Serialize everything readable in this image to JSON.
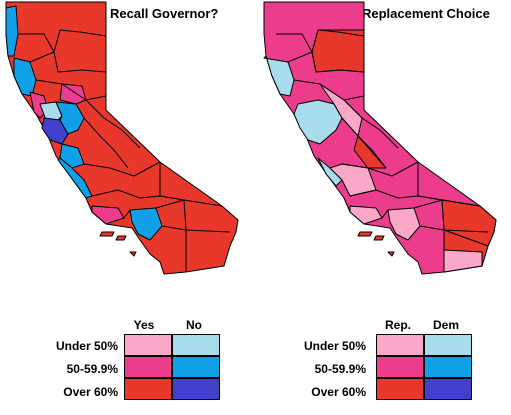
{
  "maps": [
    {
      "title": "Recall Governor?"
    },
    {
      "title": "Replacement Choice"
    }
  ],
  "legends": [
    {
      "columns": [
        "Yes",
        "No"
      ],
      "rows": [
        "Under 50%",
        "50-59.9%",
        "Over 60%"
      ],
      "colors": [
        [
          "#f9a8c8",
          "#a8dcec"
        ],
        [
          "#ec3c8c",
          "#10a0e8"
        ],
        [
          "#e8382c",
          "#4040cc"
        ]
      ]
    },
    {
      "columns": [
        "Rep.",
        "Dem"
      ],
      "rows": [
        "Under 50%",
        "50-59.9%",
        "Over 60%"
      ],
      "colors": [
        [
          "#f9a8c8",
          "#a8dcec"
        ],
        [
          "#ec3c8c",
          "#10a0e8"
        ],
        [
          "#e8382c",
          "#4040cc"
        ]
      ]
    }
  ],
  "map_colors": {
    "rep_high": "#e8382c",
    "rep_mid": "#ec3c8c",
    "rep_low": "#f9a8c8",
    "dem_low": "#a8dcec",
    "dem_mid": "#10a0e8",
    "dem_high": "#4040cc"
  }
}
